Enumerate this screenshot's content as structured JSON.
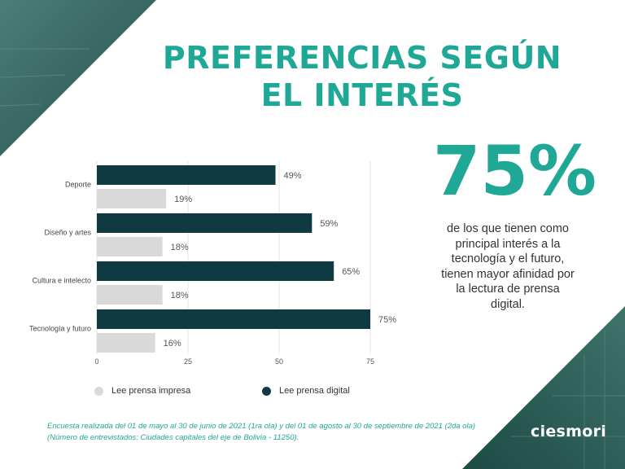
{
  "header": {
    "title_line1": "PREFERENCIAS SEGÚN",
    "title_line2": "EL INTERÉS"
  },
  "highlight": {
    "value": "75%",
    "description_lines": [
      "de los que tienen como",
      "principal interés a la",
      "tecnología y el futuro,",
      "tienen  mayor afinidad por",
      "la lectura de prensa",
      "digital."
    ]
  },
  "chart_data": {
    "type": "bar",
    "orientation": "horizontal",
    "categories": [
      "Deporte",
      "Diseño y artes",
      "Cultura e intelecto",
      "Tecnología y futuro"
    ],
    "series": [
      {
        "name": "Lee prensa digital",
        "values": [
          49,
          59,
          65,
          75
        ],
        "color": "#0f3a42",
        "labels": [
          "49%",
          "59%",
          "65%",
          "75%"
        ]
      },
      {
        "name": "Lee prensa impresa",
        "values": [
          19,
          18,
          18,
          16
        ],
        "color": "#d9d9d9",
        "labels": [
          "19%",
          "18%",
          "18%",
          "16%"
        ]
      }
    ],
    "xlim": [
      0,
      75
    ],
    "xticks": [
      0,
      25,
      50,
      75
    ],
    "tick_labels": [
      "0",
      "25",
      "50",
      "75"
    ],
    "grid": true,
    "legend_position": "bottom"
  },
  "legend": {
    "impresa_label": "Lee prensa impresa",
    "digital_label": "Lee prensa digital",
    "impresa_color": "#d9d9d9",
    "digital_color": "#0f3a42"
  },
  "footnote": "Encuesta realizada del  01 de mayo al 30 de junio de 2021 (1ra ola) y del 01 de agosto al 30 de  septiembre de 2021 (2da ola) (Número de entrevistados: Ciudades capitales del eje de Bolivia - 11250).",
  "brand": {
    "logo_text": "ciesmori"
  },
  "colors": {
    "accent": "#1fa896",
    "dark": "#0f3a42",
    "corner": "#2d5e58"
  }
}
